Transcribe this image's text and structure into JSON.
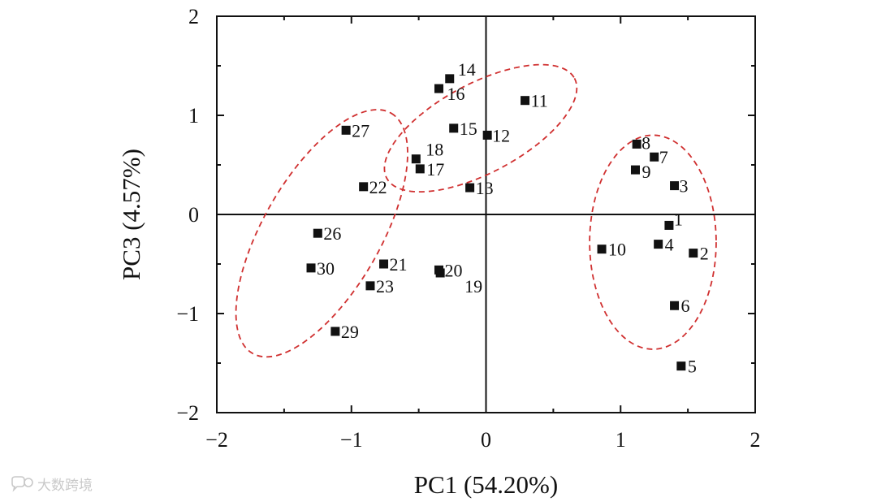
{
  "chart_data": {
    "type": "scatter",
    "title": "",
    "xlabel": "PC1 (54.20%)",
    "ylabel": "PC3 (4.57%)",
    "xlim": [
      -2,
      2
    ],
    "ylim": [
      -2,
      2
    ],
    "xticks": [
      -2,
      -1,
      0,
      1,
      2
    ],
    "yticks": [
      -2,
      -1,
      0,
      1,
      2
    ],
    "xtick_labels": [
      "−2",
      "−1",
      "0",
      "1",
      "2"
    ],
    "ytick_labels": [
      "−2",
      "−1",
      "0",
      "1",
      "2"
    ],
    "marker_color": "#111111",
    "ellipse_color": "#d03030",
    "points": [
      {
        "id": "1",
        "x": 1.36,
        "y": -0.11
      },
      {
        "id": "2",
        "x": 1.54,
        "y": -0.39
      },
      {
        "id": "3",
        "x": 1.4,
        "y": 0.29
      },
      {
        "id": "4",
        "x": 1.28,
        "y": -0.3
      },
      {
        "id": "5",
        "x": 1.45,
        "y": -1.53
      },
      {
        "id": "6",
        "x": 1.4,
        "y": -0.92
      },
      {
        "id": "7",
        "x": 1.25,
        "y": 0.58
      },
      {
        "id": "8",
        "x": 1.12,
        "y": 0.71
      },
      {
        "id": "9",
        "x": 1.11,
        "y": 0.45
      },
      {
        "id": "10",
        "x": 0.86,
        "y": -0.35
      },
      {
        "id": "11",
        "x": 0.29,
        "y": 1.15
      },
      {
        "id": "12",
        "x": 0.01,
        "y": 0.8
      },
      {
        "id": "13",
        "x": -0.12,
        "y": 0.27
      },
      {
        "id": "14",
        "x": -0.27,
        "y": 1.37
      },
      {
        "id": "15",
        "x": -0.24,
        "y": 0.87
      },
      {
        "id": "16",
        "x": -0.35,
        "y": 1.27
      },
      {
        "id": "17",
        "x": -0.49,
        "y": 0.46
      },
      {
        "id": "18",
        "x": -0.52,
        "y": 0.56
      },
      {
        "id": "19",
        "x": -0.34,
        "y": -0.59
      },
      {
        "id": "20",
        "x": -0.35,
        "y": -0.56
      },
      {
        "id": "21",
        "x": -0.76,
        "y": -0.5
      },
      {
        "id": "22",
        "x": -0.91,
        "y": 0.28
      },
      {
        "id": "23",
        "x": -0.86,
        "y": -0.72
      },
      {
        "id": "26",
        "x": -1.25,
        "y": -0.19
      },
      {
        "id": "27",
        "x": -1.04,
        "y": 0.85
      },
      {
        "id": "29",
        "x": -1.12,
        "y": -1.18
      },
      {
        "id": "30",
        "x": -1.3,
        "y": -0.54
      }
    ],
    "groups": [
      {
        "name": "group-right",
        "center": [
          1.24,
          -0.28
        ],
        "rx": 0.47,
        "ry": 1.08,
        "angle": 0
      },
      {
        "name": "group-upper",
        "center": [
          -0.04,
          0.87
        ],
        "rx": 0.79,
        "ry": 0.45,
        "angle": -28
      },
      {
        "name": "group-left",
        "center": [
          -1.22,
          -0.19
        ],
        "rx": 1.03,
        "ry": 0.59,
        "angle": -60
      }
    ]
  },
  "watermark": {
    "text": "大数跨境"
  }
}
